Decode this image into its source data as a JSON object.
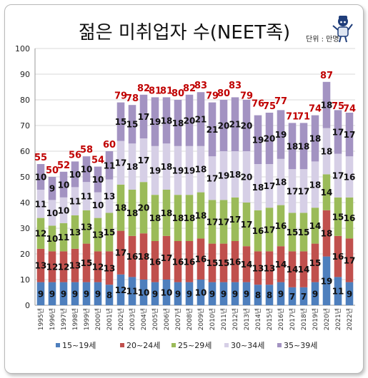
{
  "chart_data": {
    "type": "bar",
    "stacked": true,
    "title": "젊은 미취업자 수(NEET족)",
    "unit": "단위 : 만명",
    "categories": [
      "1995년",
      "1996년",
      "1997년",
      "1998년",
      "1999년",
      "2000년",
      "2001년",
      "2002년",
      "2003년",
      "2004년",
      "2005년",
      "2006년",
      "2007년",
      "2008년",
      "2009년",
      "2010년",
      "2011년",
      "2012년",
      "2013년",
      "2014년",
      "2015년",
      "2016년",
      "2017년",
      "2018년",
      "2019년",
      "2020년",
      "2021년",
      "2022년"
    ],
    "series": [
      {
        "name": "15~19세",
        "color": "#4e7fbd",
        "values": [
          9,
          9,
          9,
          9,
          9,
          9,
          8,
          12,
          11,
          10,
          9,
          10,
          9,
          9,
          10,
          9,
          9,
          9,
          9,
          8,
          8,
          9,
          7,
          7,
          9,
          19,
          11,
          9
        ]
      },
      {
        "name": "20~24세",
        "color": "#c0504d",
        "values": [
          13,
          12,
          12,
          13,
          15,
          12,
          13,
          17,
          16,
          18,
          16,
          17,
          16,
          16,
          16,
          15,
          15,
          16,
          14,
          13,
          13,
          14,
          14,
          14,
          15,
          18,
          16,
          17
        ]
      },
      {
        "name": "25~29세",
        "color": "#9bbb59",
        "values": [
          12,
          10,
          11,
          13,
          13,
          13,
          15,
          18,
          18,
          20,
          18,
          18,
          18,
          18,
          18,
          17,
          17,
          17,
          17,
          16,
          17,
          16,
          15,
          15,
          14,
          14,
          15,
          16
        ]
      },
      {
        "name": "30~34세",
        "color": "#d6cfe6",
        "values": [
          11,
          10,
          10,
          11,
          11,
          10,
          13,
          17,
          18,
          17,
          19,
          18,
          19,
          19,
          18,
          17,
          19,
          18,
          20,
          18,
          17,
          18,
          17,
          17,
          18,
          18,
          17,
          16
        ]
      },
      {
        "name": "35~39세",
        "color": "#a393c2",
        "values": [
          10,
          9,
          10,
          10,
          10,
          10,
          11,
          15,
          15,
          17,
          19,
          18,
          18,
          20,
          21,
          21,
          20,
          21,
          20,
          19,
          20,
          19,
          18,
          18,
          18,
          18,
          17,
          17
        ]
      }
    ],
    "totals": [
      55,
      50,
      52,
      56,
      58,
      54,
      60,
      79,
      78,
      82,
      81,
      81,
      80,
      82,
      83,
      79,
      80,
      83,
      79,
      76,
      75,
      77,
      71,
      71,
      74,
      87,
      75,
      74
    ],
    "ylim": [
      0,
      100
    ],
    "yticks": [
      0,
      10,
      20,
      30,
      40,
      50,
      60,
      70,
      80,
      90,
      100
    ],
    "grid": true,
    "legend_position": "bottom",
    "total_label_color": "#c00000"
  }
}
